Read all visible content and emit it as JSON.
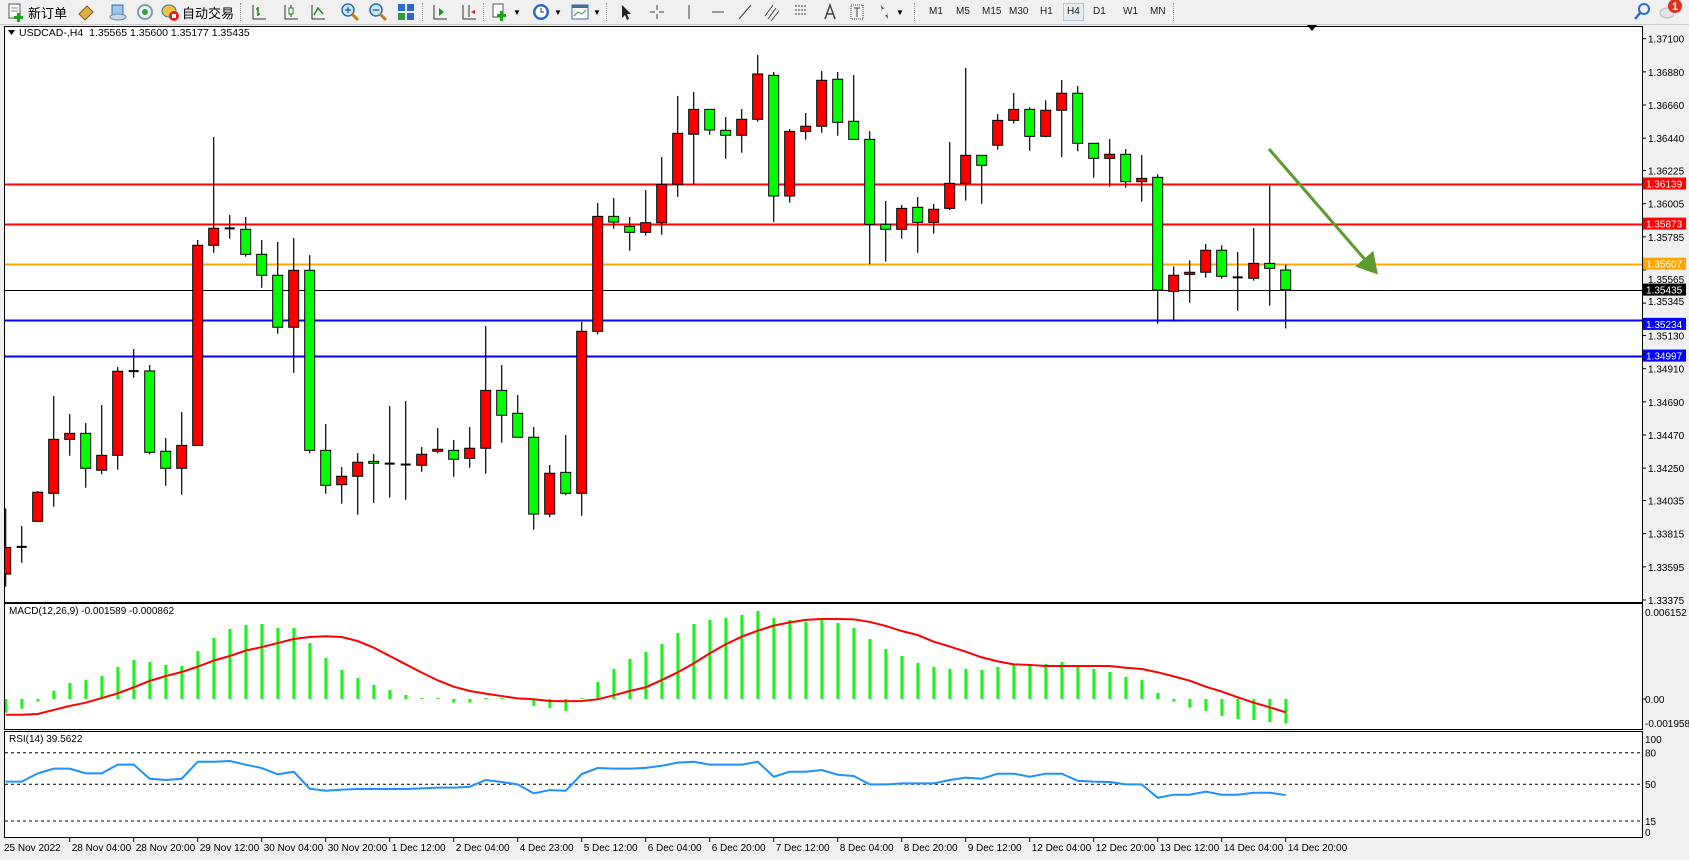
{
  "toolbar": {
    "new_order_label": "新订单",
    "autotrade_label": "自动交易",
    "timeframes": [
      "M1",
      "M5",
      "M15",
      "M30",
      "H1",
      "H4",
      "D1",
      "W1",
      "MN"
    ],
    "selected_timeframe": "H4",
    "notification_count": "1",
    "icons": [
      "new-order-icon",
      "history-icon",
      "market-watch-icon",
      "signals-icon",
      "autotrade-icon",
      "bar-chart-icon",
      "candlestick-icon",
      "line-chart-icon",
      "zoom-in-icon",
      "zoom-out-icon",
      "tile-windows-icon",
      "autoscroll-icon",
      "chart-shift-icon",
      "indicators-icon",
      "periods-icon",
      "templates-icon",
      "cursor-icon",
      "crosshair-icon",
      "vertical-line-icon",
      "horizontal-line-icon",
      "trendline-icon",
      "equidistant-channel-icon",
      "fibonacci-icon",
      "text-icon",
      "text-label-icon",
      "arrows-icon",
      "search-icon",
      "notification-icon"
    ]
  },
  "header": {
    "symbol": "USDCAD-,H4",
    "open": "1.35565",
    "high": "1.35600",
    "low": "1.35177",
    "close": "1.35435"
  },
  "chart_data": {
    "type": "candlestick",
    "colors": {
      "bull": "#ff0000",
      "bear": "#00ff00",
      "background": "#ffffff",
      "arrow": "#5b9b2f"
    },
    "candles": [
      [
        1.33547,
        1.33983,
        1.33463,
        1.33724
      ],
      [
        1.33725,
        1.33866,
        1.33622,
        1.3373
      ],
      [
        1.33897,
        1.34098,
        1.33897,
        1.3409
      ],
      [
        1.34083,
        1.34729,
        1.33994,
        1.34441
      ],
      [
        1.34441,
        1.34609,
        1.34332,
        1.34481
      ],
      [
        1.34481,
        1.34549,
        1.3412,
        1.34249
      ],
      [
        1.34236,
        1.34669,
        1.34209,
        1.34335
      ],
      [
        1.34335,
        1.34921,
        1.3424,
        1.34893
      ],
      [
        1.34893,
        1.35041,
        1.3485,
        1.34895
      ],
      [
        1.34895,
        1.34934,
        1.34342,
        1.34355
      ],
      [
        1.34362,
        1.3445,
        1.34133,
        1.34249
      ],
      [
        1.34249,
        1.34622,
        1.34074,
        1.34401
      ],
      [
        1.34401,
        1.35764,
        1.34401,
        1.35729
      ],
      [
        1.35729,
        1.36448,
        1.3568,
        1.35842
      ],
      [
        1.35842,
        1.3593,
        1.35773,
        1.3584
      ],
      [
        1.35835,
        1.35917,
        1.35653,
        1.35669
      ],
      [
        1.35669,
        1.35764,
        1.35447,
        1.3553
      ],
      [
        1.3553,
        1.35751,
        1.35142,
        1.35185
      ],
      [
        1.35185,
        1.35777,
        1.34883,
        1.35563
      ],
      [
        1.35563,
        1.35664,
        1.34348,
        1.34368
      ],
      [
        1.34368,
        1.34543,
        1.3408,
        1.34136
      ],
      [
        1.3414,
        1.34257,
        1.34014,
        1.34196
      ],
      [
        1.34196,
        1.3435,
        1.33941,
        1.34289
      ],
      [
        1.34295,
        1.34344,
        1.3402,
        1.34282
      ],
      [
        1.34279,
        1.34662,
        1.34054,
        1.34281
      ],
      [
        1.34273,
        1.34695,
        1.3404,
        1.34275
      ],
      [
        1.34269,
        1.3439,
        1.34226,
        1.34342
      ],
      [
        1.34362,
        1.34516,
        1.34348,
        1.34375
      ],
      [
        1.34368,
        1.34437,
        1.34193,
        1.34309
      ],
      [
        1.34315,
        1.34523,
        1.34253,
        1.34382
      ],
      [
        1.34382,
        1.35193,
        1.34213,
        1.34766
      ],
      [
        1.34766,
        1.34934,
        1.34419,
        1.34601
      ],
      [
        1.34614,
        1.34735,
        1.34455,
        1.34455
      ],
      [
        1.34455,
        1.34523,
        1.33841,
        1.33945
      ],
      [
        1.33945,
        1.34271,
        1.33924,
        1.34216
      ],
      [
        1.34222,
        1.3447,
        1.3407,
        1.34083
      ],
      [
        1.34083,
        1.3522,
        1.33934,
        1.35158
      ],
      [
        1.35158,
        1.3601,
        1.35138,
        1.35921
      ],
      [
        1.35921,
        1.36043,
        1.35839,
        1.35883
      ],
      [
        1.35855,
        1.35917,
        1.35693,
        1.35815
      ],
      [
        1.35815,
        1.36096,
        1.35793,
        1.35879
      ],
      [
        1.35879,
        1.36315,
        1.35799,
        1.36134
      ],
      [
        1.36134,
        1.3672,
        1.36051,
        1.36472
      ],
      [
        1.36466,
        1.36746,
        1.36131,
        1.36631
      ],
      [
        1.36631,
        1.36631,
        1.36463,
        1.36494
      ],
      [
        1.36492,
        1.3658,
        1.36304,
        1.36459
      ],
      [
        1.36459,
        1.36633,
        1.36343,
        1.36565
      ],
      [
        1.36565,
        1.36992,
        1.36549,
        1.36866
      ],
      [
        1.36857,
        1.36879,
        1.35883,
        1.36056
      ],
      [
        1.36056,
        1.36501,
        1.36012,
        1.36485
      ],
      [
        1.36485,
        1.36607,
        1.3643,
        1.36519
      ],
      [
        1.36519,
        1.36886,
        1.36476,
        1.36824
      ],
      [
        1.36831,
        1.36879,
        1.36456,
        1.36545
      ],
      [
        1.36552,
        1.36859,
        1.36432,
        1.36432
      ],
      [
        1.36432,
        1.36487,
        1.35603,
        1.35868
      ],
      [
        1.35868,
        1.36023,
        1.3562,
        1.35835
      ],
      [
        1.35835,
        1.35996,
        1.35773,
        1.35974
      ],
      [
        1.35981,
        1.36049,
        1.3568,
        1.35881
      ],
      [
        1.35881,
        1.36003,
        1.35806,
        1.35968
      ],
      [
        1.35974,
        1.36414,
        1.35963,
        1.3614
      ],
      [
        1.3614,
        1.36906,
        1.36025,
        1.36326
      ],
      [
        1.36326,
        1.36326,
        1.36005,
        1.3626
      ],
      [
        1.36393,
        1.366,
        1.36363,
        1.36558
      ],
      [
        1.36558,
        1.3674,
        1.36536,
        1.36631
      ],
      [
        1.36631,
        1.36645,
        1.36357,
        1.36452
      ],
      [
        1.36452,
        1.36691,
        1.36446,
        1.36625
      ],
      [
        1.36625,
        1.36826,
        1.36313,
        1.36738
      ],
      [
        1.36738,
        1.36786,
        1.36353,
        1.36406
      ],
      [
        1.36406,
        1.36406,
        1.36177,
        1.36306
      ],
      [
        1.36306,
        1.36434,
        1.36118,
        1.36333
      ],
      [
        1.36333,
        1.36368,
        1.36111,
        1.36151
      ],
      [
        1.36151,
        1.36328,
        1.36018,
        1.36173
      ],
      [
        1.3618,
        1.362,
        1.35208,
        1.35432
      ],
      [
        1.35423,
        1.35589,
        1.35222,
        1.3553
      ],
      [
        1.35536,
        1.35629,
        1.35348,
        1.3555
      ],
      [
        1.3555,
        1.35737,
        1.35514,
        1.35696
      ],
      [
        1.35696,
        1.35729,
        1.35507,
        1.35523
      ],
      [
        1.35518,
        1.35684,
        1.35295,
        1.35514
      ],
      [
        1.3551,
        1.35844,
        1.35494,
        1.35609
      ],
      [
        1.35609,
        1.36124,
        1.35328,
        1.35576
      ],
      [
        1.35565,
        1.356,
        1.35177,
        1.35435
      ]
    ],
    "price_ticks": [
      "1.37100",
      "1.36880",
      "1.36660",
      "1.36440",
      "1.36225",
      "1.36005",
      "1.35785",
      "1.35565",
      "1.35345",
      "1.35130",
      "1.34910",
      "1.34690",
      "1.34470",
      "1.34250",
      "1.34035",
      "1.33815",
      "1.33595",
      "1.33375"
    ],
    "levels": [
      {
        "price": "1.36139",
        "color": "#ff0000"
      },
      {
        "price": "1.35873",
        "color": "#ff0000"
      },
      {
        "price": "1.35607",
        "color": "#ffa500"
      },
      {
        "price": "1.35435",
        "color": "#000000"
      },
      {
        "price": "1.35234",
        "color": "#0000ff"
      },
      {
        "price": "1.34997",
        "color": "#0000ff"
      }
    ],
    "time_labels": [
      "25 Nov 2022",
      "28 Nov 04:00",
      "28 Nov 20:00",
      "29 Nov 12:00",
      "30 Nov 04:00",
      "30 Nov 20:00",
      "1 Dec 12:00",
      "2 Dec 04:00",
      "4 Dec 23:00",
      "5 Dec 12:00",
      "6 Dec 04:00",
      "6 Dec 20:00",
      "7 Dec 12:00",
      "8 Dec 04:00",
      "8 Dec 20:00",
      "9 Dec 12:00",
      "12 Dec 04:00",
      "12 Dec 20:00",
      "13 Dec 12:00",
      "14 Dec 04:00",
      "14 Dec 20:00"
    ],
    "macd": {
      "title": "MACD(12,26,9) -0.001589 -0.000862",
      "range": [
        -0.001958,
        0.006152
      ],
      "ticks": [
        "0.006152",
        "0.00",
        "-0.001958"
      ],
      "hist_color": "#00ff00",
      "signal_color": "#ff0000",
      "histogram": [
        -0.00089,
        -0.00063,
        -0.00017,
        0.00054,
        0.00104,
        0.00123,
        0.00149,
        0.00208,
        0.00253,
        0.0024,
        0.00221,
        0.00214,
        0.00311,
        0.00396,
        0.00454,
        0.0048,
        0.00487,
        0.00461,
        0.00461,
        0.00363,
        0.00266,
        0.00188,
        0.00136,
        0.00091,
        0.00058,
        0.00026,
        6e-05,
        2e-05,
        -0.00024,
        -0.00024,
        -2e-05,
        3e-05,
        0.0,
        -0.00045,
        -0.00058,
        -0.00078,
        3e-05,
        0.0011,
        0.00195,
        0.0026,
        0.00305,
        0.00357,
        0.00428,
        0.00487,
        0.00513,
        0.00526,
        0.00545,
        0.00571,
        0.00526,
        0.00513,
        0.005,
        0.00513,
        0.00493,
        0.00461,
        0.00389,
        0.00324,
        0.00279,
        0.00234,
        0.00208,
        0.00195,
        0.00195,
        0.00188,
        0.00208,
        0.00221,
        0.00221,
        0.00227,
        0.0024,
        0.00214,
        0.00195,
        0.00175,
        0.00143,
        0.00123,
        0.00039,
        -0.00017,
        -0.00056,
        -0.00078,
        -0.0011,
        -0.0013,
        -0.00136,
        -0.00149,
        -0.001589
      ],
      "signal": [
        -0.00102,
        -0.00102,
        -0.00097,
        -0.00071,
        -0.00045,
        -0.00024,
        6e-05,
        0.00037,
        0.00076,
        0.00117,
        0.00149,
        0.00175,
        0.0021,
        0.00249,
        0.00279,
        0.00314,
        0.00337,
        0.00363,
        0.00389,
        0.00402,
        0.00407,
        0.00402,
        0.00376,
        0.00333,
        0.00279,
        0.00225,
        0.00171,
        0.00121,
        0.0008,
        0.00052,
        0.00035,
        0.00019,
        4e-05,
        -2e-05,
        -0.00013,
        -0.00015,
        -0.00013,
        -2e-05,
        0.00024,
        0.00052,
        0.00076,
        0.00123,
        0.00173,
        0.00231,
        0.00296,
        0.00355,
        0.00404,
        0.00443,
        0.00476,
        0.00497,
        0.00513,
        0.00519,
        0.00519,
        0.00517,
        0.005,
        0.00474,
        0.00441,
        0.00415,
        0.00372,
        0.0034,
        0.00307,
        0.0027,
        0.00244,
        0.00225,
        0.00221,
        0.00214,
        0.00214,
        0.00214,
        0.00214,
        0.00214,
        0.00203,
        0.00195,
        0.00173,
        0.00147,
        0.00119,
        0.0008,
        0.00048,
        0.00011,
        -0.00024,
        -0.00054,
        -0.000862
      ]
    },
    "rsi": {
      "title": "RSI(14) 39.5622",
      "range": [
        0,
        100
      ],
      "ticks": [
        "100",
        "80",
        "50",
        "15",
        "0"
      ],
      "levels": [
        80,
        50,
        15
      ],
      "color": "#1e90ff",
      "values": [
        52.4,
        52.4,
        60.3,
        64.8,
        64.8,
        60.3,
        60.3,
        68.6,
        68.6,
        55.2,
        54.0,
        55.2,
        71.4,
        71.4,
        72.1,
        68.6,
        65.4,
        59.4,
        61.9,
        45.7,
        43.8,
        44.8,
        45.4,
        45.4,
        45.4,
        45.4,
        46.0,
        46.7,
        46.7,
        47.6,
        54.0,
        52.1,
        49.8,
        41.3,
        44.4,
        43.8,
        59.7,
        65.4,
        64.8,
        64.8,
        65.5,
        67.6,
        70.5,
        71.4,
        68.6,
        68.6,
        68.6,
        71.4,
        57.1,
        61.9,
        61.9,
        63.5,
        59.0,
        57.8,
        49.8,
        49.8,
        50.8,
        50.8,
        50.8,
        54.0,
        56.2,
        55.2,
        60.0,
        60.0,
        57.1,
        60.0,
        60.0,
        53.3,
        52.4,
        52.1,
        49.8,
        49.8,
        37.1,
        40.0,
        40.0,
        42.9,
        40.0,
        40.0,
        41.9,
        41.9,
        39.56
      ]
    }
  }
}
